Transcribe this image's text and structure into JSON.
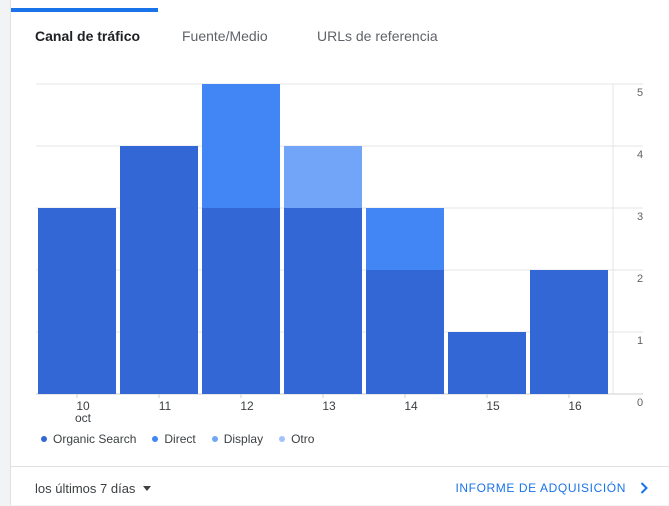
{
  "tabs": [
    {
      "label": "Canal de tráfico",
      "active": true
    },
    {
      "label": "Fuente/Medio",
      "active": false
    },
    {
      "label": "URLs de referencia",
      "active": false
    }
  ],
  "chart_data": {
    "type": "bar",
    "stacked": true,
    "categories": [
      "10",
      "11",
      "12",
      "13",
      "14",
      "15",
      "16"
    ],
    "category_sublabels": [
      "oct",
      "",
      "",
      "",
      "",
      "",
      ""
    ],
    "series": [
      {
        "name": "Organic Search",
        "color": "#3367d6",
        "values": [
          3,
          4,
          3,
          3,
          2,
          1,
          2
        ]
      },
      {
        "name": "Direct",
        "color": "#4285f4",
        "values": [
          0,
          0,
          2,
          0,
          1,
          0,
          0
        ]
      },
      {
        "name": "Display",
        "color": "#72a4f7",
        "values": [
          0,
          0,
          0,
          1,
          0,
          0,
          0
        ]
      },
      {
        "name": "Otro",
        "color": "#a1c2fa",
        "values": [
          0,
          0,
          0,
          0,
          0,
          0,
          0
        ]
      }
    ],
    "yticks": [
      "0",
      "1",
      "2",
      "3",
      "4",
      "5"
    ],
    "ylim": [
      0,
      5
    ],
    "y_axis_position": "right",
    "grid": true
  },
  "footer": {
    "date_range": "los últimos 7 días",
    "report_link": "INFORME DE ADQUISICIÓN"
  }
}
